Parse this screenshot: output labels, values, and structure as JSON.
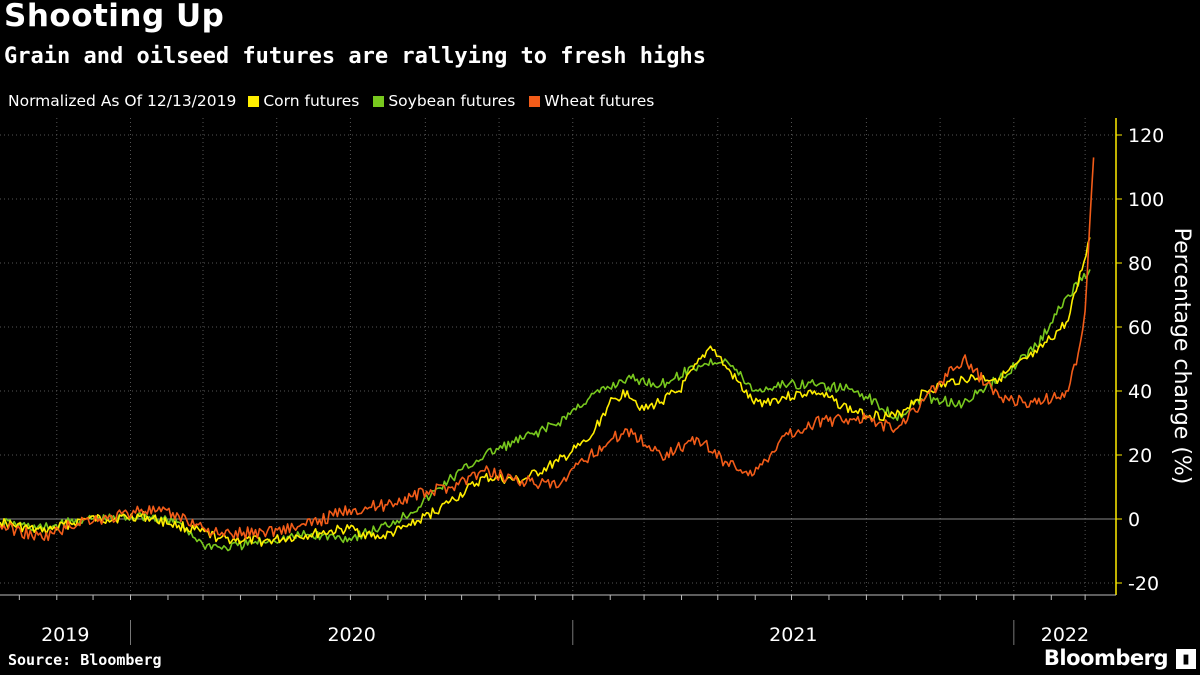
{
  "header": {
    "title": "Shooting Up",
    "subtitle": "Grain and oilseed futures are rallying to fresh highs"
  },
  "legend": {
    "normalized_label": "Normalized As Of 12/13/2019"
  },
  "footer": {
    "source": "Source: Bloomberg",
    "brand": "Bloomberg"
  },
  "colors": {
    "corn": "#ffee00",
    "soybean": "#78c81e",
    "wheat": "#f25c19",
    "grid": "#555555",
    "axis": "#ffee00"
  },
  "chart_data": {
    "type": "line",
    "title": "Shooting Up",
    "subtitle": "Grain and oilseed futures are rallying to fresh highs",
    "ylabel": "Percentage change (%)",
    "xlabel": "",
    "ylim": [
      -20,
      120
    ],
    "yticks": [
      120,
      100,
      80,
      60,
      40,
      20,
      0,
      -20
    ],
    "year_labels": [
      "2019",
      "2020",
      "2021",
      "2022"
    ],
    "xlim": [
      "2019-09-15",
      "2022-03-10"
    ],
    "grid": true,
    "legend_position": "top",
    "series": [
      {
        "name": "Corn futures",
        "color": "#ffee00",
        "points": [
          [
            "2019-09-15",
            -1
          ],
          [
            "2019-10-20",
            -4
          ],
          [
            "2019-11-25",
            0
          ],
          [
            "2019-12-13",
            0
          ],
          [
            "2020-01-10",
            1
          ],
          [
            "2020-02-10",
            -2
          ],
          [
            "2020-03-15",
            -6
          ],
          [
            "2020-04-20",
            -7
          ],
          [
            "2020-05-25",
            -5
          ],
          [
            "2020-06-30",
            -3
          ],
          [
            "2020-07-25",
            -6
          ],
          [
            "2020-08-20",
            -2
          ],
          [
            "2020-09-20",
            5
          ],
          [
            "2020-10-20",
            13
          ],
          [
            "2020-11-20",
            12
          ],
          [
            "2020-12-20",
            18
          ],
          [
            "2021-01-15",
            25
          ],
          [
            "2021-01-31",
            36
          ],
          [
            "2021-02-15",
            40
          ],
          [
            "2021-03-01",
            34
          ],
          [
            "2021-03-30",
            40
          ],
          [
            "2021-04-25",
            54
          ],
          [
            "2021-05-07",
            48
          ],
          [
            "2021-05-31",
            36
          ],
          [
            "2021-06-25",
            38
          ],
          [
            "2021-07-20",
            40
          ],
          [
            "2021-08-25",
            33
          ],
          [
            "2021-09-25",
            32
          ],
          [
            "2021-10-20",
            40
          ],
          [
            "2021-11-20",
            44
          ],
          [
            "2021-12-20",
            44
          ],
          [
            "2022-01-20",
            52
          ],
          [
            "2022-02-15",
            62
          ],
          [
            "2022-03-05",
            88
          ]
        ]
      },
      {
        "name": "Soybean futures",
        "color": "#78c81e",
        "points": [
          [
            "2019-09-15",
            -1
          ],
          [
            "2019-10-20",
            -3
          ],
          [
            "2019-11-25",
            0
          ],
          [
            "2019-12-13",
            0
          ],
          [
            "2020-01-10",
            1
          ],
          [
            "2020-02-10",
            -1
          ],
          [
            "2020-03-01",
            -8
          ],
          [
            "2020-03-20",
            -9
          ],
          [
            "2020-04-20",
            -7
          ],
          [
            "2020-05-25",
            -5
          ],
          [
            "2020-06-30",
            -6
          ],
          [
            "2020-07-25",
            -3
          ],
          [
            "2020-08-20",
            2
          ],
          [
            "2020-09-20",
            12
          ],
          [
            "2020-10-20",
            20
          ],
          [
            "2020-11-20",
            25
          ],
          [
            "2020-12-20",
            30
          ],
          [
            "2021-01-15",
            38
          ],
          [
            "2021-02-15",
            44
          ],
          [
            "2021-03-15",
            42
          ],
          [
            "2021-04-15",
            48
          ],
          [
            "2021-05-07",
            50
          ],
          [
            "2021-05-31",
            40
          ],
          [
            "2021-06-25",
            42
          ],
          [
            "2021-07-20",
            42
          ],
          [
            "2021-08-25",
            40
          ],
          [
            "2021-09-25",
            32
          ],
          [
            "2021-10-20",
            38
          ],
          [
            "2021-11-20",
            36
          ],
          [
            "2021-12-20",
            44
          ],
          [
            "2022-01-20",
            54
          ],
          [
            "2022-02-15",
            70
          ],
          [
            "2022-03-05",
            78
          ]
        ]
      },
      {
        "name": "Wheat futures",
        "color": "#f25c19",
        "points": [
          [
            "2019-09-15",
            -2
          ],
          [
            "2019-10-20",
            -6
          ],
          [
            "2019-11-25",
            0
          ],
          [
            "2019-12-13",
            0
          ],
          [
            "2020-01-10",
            3
          ],
          [
            "2020-02-10",
            1
          ],
          [
            "2020-03-15",
            -5
          ],
          [
            "2020-04-20",
            -4
          ],
          [
            "2020-05-25",
            -2
          ],
          [
            "2020-06-30",
            3
          ],
          [
            "2020-07-25",
            4
          ],
          [
            "2020-08-20",
            7
          ],
          [
            "2020-09-20",
            10
          ],
          [
            "2020-10-20",
            15
          ],
          [
            "2020-11-20",
            12
          ],
          [
            "2020-12-20",
            10
          ],
          [
            "2021-01-15",
            20
          ],
          [
            "2021-02-15",
            28
          ],
          [
            "2021-03-15",
            20
          ],
          [
            "2021-04-15",
            25
          ],
          [
            "2021-05-07",
            18
          ],
          [
            "2021-05-31",
            14
          ],
          [
            "2021-06-25",
            26
          ],
          [
            "2021-07-20",
            30
          ],
          [
            "2021-08-25",
            32
          ],
          [
            "2021-09-25",
            28
          ],
          [
            "2021-10-20",
            38
          ],
          [
            "2021-11-20",
            50
          ],
          [
            "2021-12-20",
            38
          ],
          [
            "2022-01-20",
            36
          ],
          [
            "2022-02-15",
            40
          ],
          [
            "2022-02-25",
            55
          ],
          [
            "2022-03-01",
            65
          ],
          [
            "2022-03-08",
            113
          ]
        ]
      }
    ]
  }
}
